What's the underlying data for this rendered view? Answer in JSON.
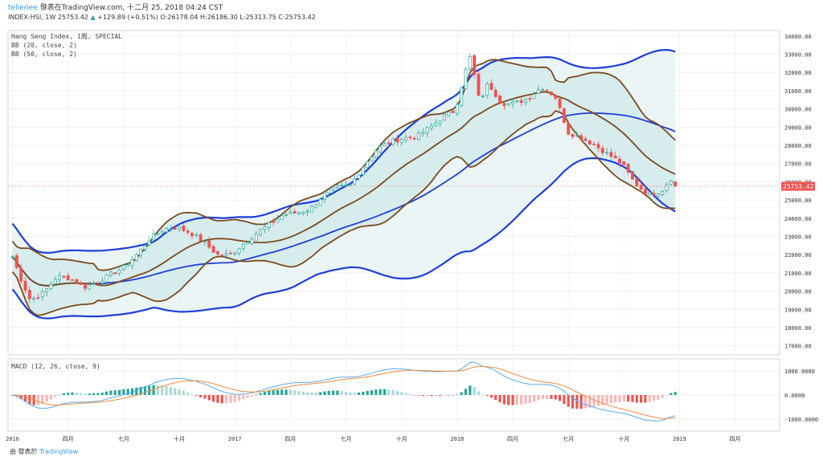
{
  "header": {
    "author": "telieriee",
    "published_on": "發表在TradingView.com, 十二月 25, 2018 04:24 CST"
  },
  "ohlc_line": {
    "symbol": "INDEX:HSI, 1W",
    "last": "25753.42",
    "change": "+129.89 (+0.51%)",
    "open": "O:26178.04",
    "high": "H:26186.30",
    "low": "L:25313.75",
    "close": "C:25753.42"
  },
  "legend": {
    "main": "Hang Seng Index, 1周, SPECIAL",
    "bb20": "BB (20, close, 2)",
    "bb50": "BB (50, close, 2)",
    "macd": "MACD (12, 26, close, 9)"
  },
  "price_badge": "25753.42",
  "footer": {
    "text": "由  發表於",
    "brand": "TradingView"
  },
  "colors": {
    "up": "#26a69a",
    "down": "#ef5350",
    "bb20": "#7b4a1e",
    "bb50": "#1e3fd8",
    "macd_line": "#5aaae6",
    "signal_line": "#f08a3c",
    "hist_pos_strong": "#26a69a",
    "hist_pos_weak": "#a7dbd5",
    "hist_neg_strong": "#ef5350",
    "hist_neg_weak": "#f6b8b7"
  },
  "chart_data": [
    {
      "type": "candlestick",
      "title": "Hang Seng Index, 1周, SPECIAL",
      "yaxis_ticks": [
        "17000.00",
        "18000.00",
        "19000.00",
        "20000.00",
        "21000.00",
        "22000.00",
        "23000.00",
        "24000.00",
        "25000.00",
        "26000.00",
        "27000.00",
        "28000.00",
        "29000.00",
        "30000.00",
        "31000.00",
        "32000.00",
        "33000.00",
        "34000.00"
      ],
      "ylim": [
        16500,
        34300
      ],
      "xaxis_ticks": [
        "2016",
        "四月",
        "七月",
        "十月",
        "2017",
        "四月",
        "七月",
        "十月",
        "2018",
        "四月",
        "七月",
        "十月",
        "2019",
        "四月"
      ],
      "close_series_approx": [
        [
          2016.0,
          21900
        ],
        [
          2016.04,
          20600
        ],
        [
          2016.08,
          19500
        ],
        [
          2016.14,
          19900
        ],
        [
          2016.2,
          20800
        ],
        [
          2016.26,
          20700
        ],
        [
          2016.32,
          20200
        ],
        [
          2016.38,
          20500
        ],
        [
          2016.44,
          20900
        ],
        [
          2016.5,
          21300
        ],
        [
          2016.56,
          22000
        ],
        [
          2016.62,
          22900
        ],
        [
          2016.68,
          23400
        ],
        [
          2016.74,
          23500
        ],
        [
          2016.8,
          23200
        ],
        [
          2016.86,
          22700
        ],
        [
          2016.92,
          22000
        ],
        [
          2016.98,
          22000
        ],
        [
          2017.04,
          22600
        ],
        [
          2017.1,
          23200
        ],
        [
          2017.16,
          23700
        ],
        [
          2017.22,
          24200
        ],
        [
          2017.28,
          24300
        ],
        [
          2017.34,
          24500
        ],
        [
          2017.4,
          25300
        ],
        [
          2017.46,
          25700
        ],
        [
          2017.52,
          25800
        ],
        [
          2017.58,
          26900
        ],
        [
          2017.64,
          27800
        ],
        [
          2017.7,
          28200
        ],
        [
          2017.76,
          28400
        ],
        [
          2017.82,
          28500
        ],
        [
          2017.88,
          29000
        ],
        [
          2017.94,
          29600
        ],
        [
          2017.99,
          29900
        ],
        [
          2018.04,
          32200
        ],
        [
          2018.06,
          32900
        ],
        [
          2018.1,
          30400
        ],
        [
          2018.14,
          31400
        ],
        [
          2018.2,
          30300
        ],
        [
          2018.26,
          30300
        ],
        [
          2018.32,
          30600
        ],
        [
          2018.38,
          31200
        ],
        [
          2018.44,
          30700
        ],
        [
          2018.5,
          28700
        ],
        [
          2018.56,
          28400
        ],
        [
          2018.62,
          28000
        ],
        [
          2018.68,
          27500
        ],
        [
          2018.74,
          27000
        ],
        [
          2018.8,
          25900
        ],
        [
          2018.86,
          25300
        ],
        [
          2018.92,
          25500
        ],
        [
          2018.96,
          26200
        ],
        [
          2018.98,
          25753
        ]
      ],
      "bb20_bands": "brown",
      "bb50_bands": "blue",
      "last_price": 25753.42
    },
    {
      "type": "line+bar",
      "title": "MACD (12, 26, close, 9)",
      "yaxis_ticks": [
        "1000.0000",
        "0.0000",
        "-1000.0000"
      ],
      "ylim": [
        -1500,
        1500
      ]
    }
  ]
}
